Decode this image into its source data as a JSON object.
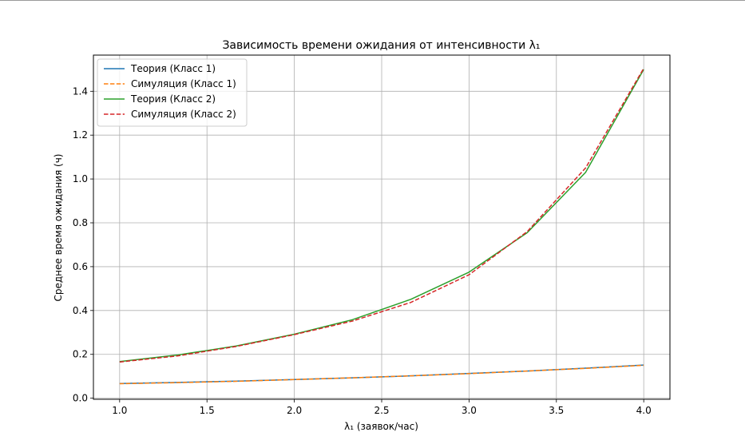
{
  "chart_data": {
    "type": "line",
    "title": "Зависимость времени ожидания от интенсивности λ₁",
    "xlabel": "λ₁ (заявок/час)",
    "ylabel": "Среднее время ожидания (ч)",
    "xlim": [
      0.85,
      4.15
    ],
    "ylim": [
      -0.005,
      1.565
    ],
    "grid": true,
    "legend_position": "top-left",
    "xticks": [
      1.0,
      1.5,
      2.0,
      2.5,
      3.0,
      3.5,
      4.0
    ],
    "xtick_labels": [
      "1.0",
      "1.5",
      "2.0",
      "2.5",
      "3.0",
      "3.5",
      "4.0"
    ],
    "yticks": [
      0.0,
      0.2,
      0.4,
      0.6,
      0.8,
      1.0,
      1.2,
      1.4
    ],
    "ytick_labels": [
      "0.0",
      "0.2",
      "0.4",
      "0.6",
      "0.8",
      "1.0",
      "1.2",
      "1.4"
    ],
    "x": [
      1.0,
      1.333,
      1.667,
      2.0,
      2.333,
      2.667,
      3.0,
      3.333,
      3.667,
      4.0
    ],
    "series": [
      {
        "name": "Теория (Класс 1)",
        "color": "#1f77b4",
        "dash": "solid",
        "values": [
          0.067,
          0.072,
          0.078,
          0.085,
          0.093,
          0.102,
          0.113,
          0.124,
          0.137,
          0.151
        ]
      },
      {
        "name": "Симуляция (Класс 1)",
        "color": "#ff7f0e",
        "dash": "dashed",
        "values": [
          0.066,
          0.071,
          0.077,
          0.085,
          0.093,
          0.102,
          0.112,
          0.124,
          0.136,
          0.15
        ]
      },
      {
        "name": "Теория (Класс 2)",
        "color": "#2ca02c",
        "dash": "solid",
        "values": [
          0.167,
          0.197,
          0.238,
          0.292,
          0.358,
          0.451,
          0.575,
          0.755,
          1.03,
          1.5
        ]
      },
      {
        "name": "Симуляция (Класс 2)",
        "color": "#d62728",
        "dash": "dashed",
        "values": [
          0.165,
          0.193,
          0.236,
          0.29,
          0.352,
          0.437,
          0.563,
          0.76,
          1.05,
          1.505
        ]
      }
    ]
  }
}
